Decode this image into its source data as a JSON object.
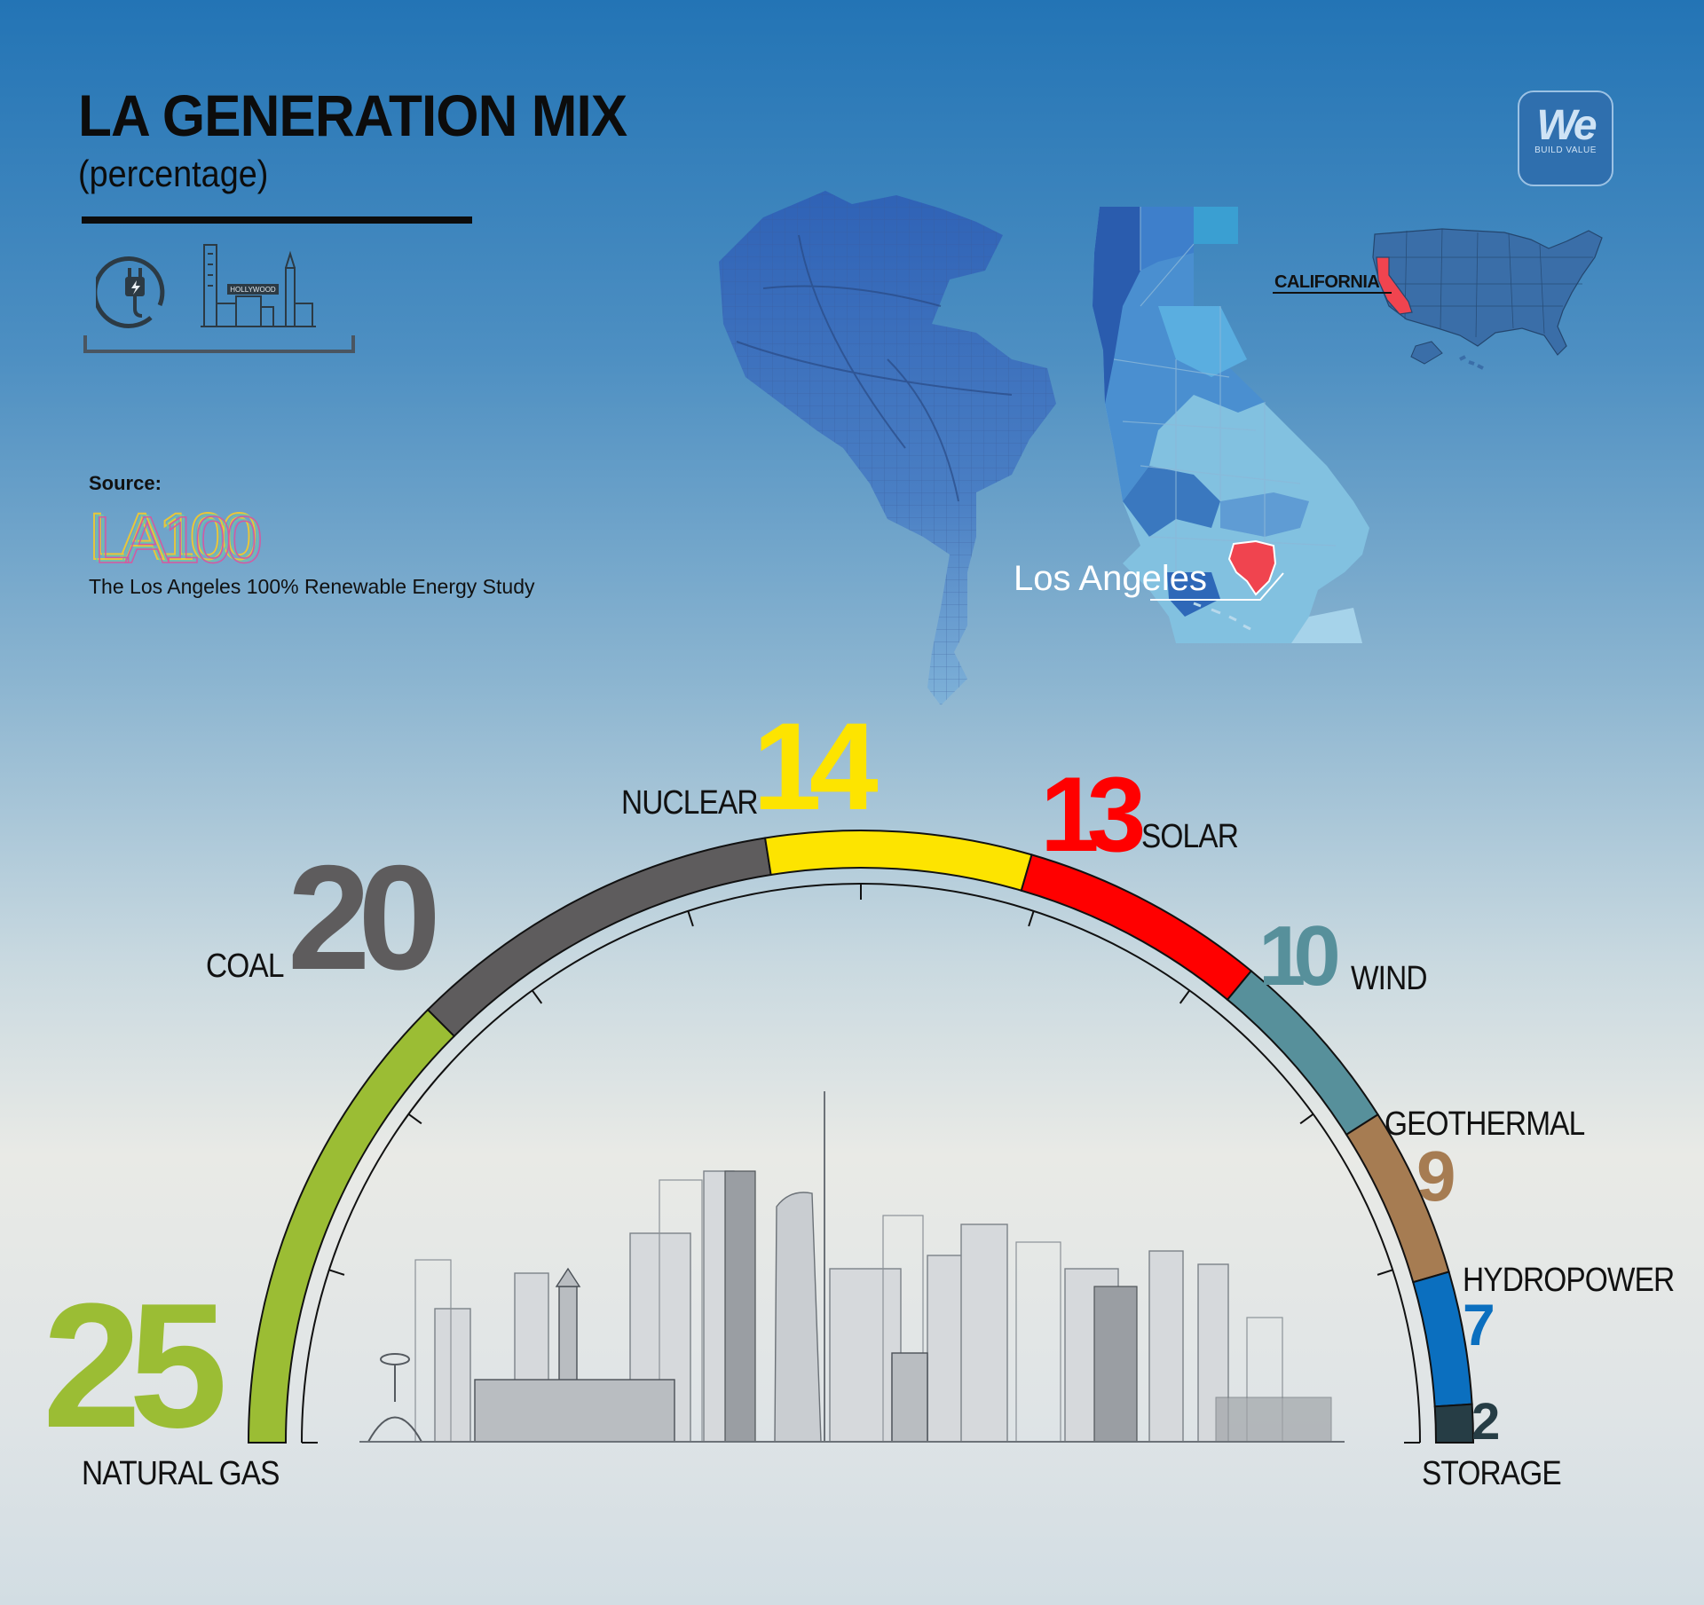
{
  "header": {
    "title": "LA GENERATION MIX",
    "subtitle": "(percentage)"
  },
  "icons": [
    "power-plug-icon",
    "la-skyline-icon"
  ],
  "skyline_icon_text": "HOLLYWOOD",
  "source": {
    "label": "Source:",
    "logo_text": "LA100",
    "study": "The Los Angeles 100% Renewable Energy Study"
  },
  "brand": {
    "main": "We",
    "tagline": "BUILD VALUE"
  },
  "maps": {
    "state_label": "CALIFORNIA",
    "city_label": "Los Angeles",
    "highlight_color": "#f0444f"
  },
  "chart_data": {
    "type": "pie",
    "title": "LA GENERATION MIX",
    "subtitle": "(percentage)",
    "style": "semicircle-arc",
    "slices": [
      {
        "label": "NATURAL GAS",
        "value": 25,
        "color": "#9bbd34"
      },
      {
        "label": "COAL",
        "value": 20,
        "color": "#5e5c5d"
      },
      {
        "label": "NUCLEAR",
        "value": 14,
        "color": "#fde400"
      },
      {
        "label": "SOLAR",
        "value": 13,
        "color": "#ff0000"
      },
      {
        "label": "WIND",
        "value": 10,
        "color": "#57909b"
      },
      {
        "label": "GEOTHERMAL",
        "value": 9,
        "color": "#a67c52"
      },
      {
        "label": "HYDROPOWER",
        "value": 7,
        "color": "#0b6fbf"
      },
      {
        "label": "STORAGE",
        "value": 2,
        "color": "#263d45"
      }
    ]
  }
}
